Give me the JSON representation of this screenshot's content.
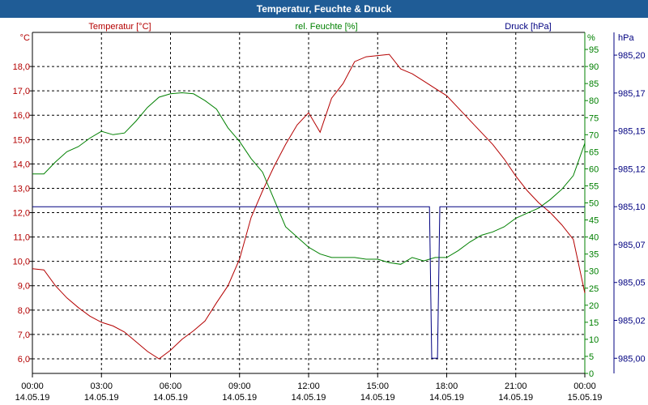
{
  "window": {
    "title": "Temperatur, Feuchte & Druck"
  },
  "chart_data": {
    "type": "line",
    "title": "Temperatur, Feuchte & Druck",
    "grid": true,
    "x_axis": {
      "labels": [
        {
          "time": "00:00",
          "date": "14.05.19"
        },
        {
          "time": "03:00",
          "date": "14.05.19"
        },
        {
          "time": "06:00",
          "date": "14.05.19"
        },
        {
          "time": "09:00",
          "date": "14.05.19"
        },
        {
          "time": "12:00",
          "date": "14.05.19"
        },
        {
          "time": "15:00",
          "date": "14.05.19"
        },
        {
          "time": "18:00",
          "date": "14.05.19"
        },
        {
          "time": "21:00",
          "date": "14.05.19"
        },
        {
          "time": "00:00",
          "date": "15.05.19"
        }
      ],
      "range_hours": [
        0,
        24
      ]
    },
    "axes": {
      "temperature": {
        "label": "Temperatur [°C]",
        "unit": "°C",
        "range": [
          5.4,
          19.4
        ],
        "ticks": [
          "6,0",
          "7,0",
          "8,0",
          "9,0",
          "10,0",
          "11,0",
          "12,0",
          "13,0",
          "14,0",
          "15,0",
          "16,0",
          "17,0",
          "18,0"
        ],
        "color": "#b40000"
      },
      "humidity": {
        "label": "rel. Feuchte [%]",
        "unit": "%",
        "range": [
          0,
          100
        ],
        "ticks": [
          "0",
          "5",
          "10",
          "15",
          "20",
          "25",
          "30",
          "35",
          "40",
          "45",
          "50",
          "55",
          "60",
          "65",
          "70",
          "75",
          "80",
          "85",
          "90",
          "95"
        ],
        "color": "#008000"
      },
      "pressure": {
        "label": "Druck [hPa]",
        "unit": "hPa",
        "range": [
          984.99,
          985.215
        ],
        "ticks": [
          "985,00",
          "985,02",
          "985,05",
          "985,07",
          "985,10",
          "985,12",
          "985,15",
          "985,17",
          "985,20"
        ],
        "color": "#000080"
      }
    },
    "series": [
      {
        "name": "Temperatur [°C]",
        "axis": "temperature",
        "color": "#b40000",
        "x": [
          0,
          0.5,
          1,
          1.5,
          2,
          2.5,
          3,
          3.5,
          4,
          4.5,
          5,
          5.5,
          6,
          6.5,
          7,
          7.5,
          8,
          8.5,
          9,
          9.5,
          10,
          10.5,
          11,
          11.5,
          12,
          12.5,
          13,
          13.5,
          14,
          14.5,
          15,
          15.5,
          16,
          16.5,
          17,
          17.5,
          18,
          18.5,
          19,
          19.5,
          20,
          20.5,
          21,
          21.5,
          22,
          22.5,
          23,
          23.5,
          24
        ],
        "values": [
          9.7,
          9.65,
          9.0,
          8.5,
          8.1,
          7.75,
          7.5,
          7.35,
          7.1,
          6.7,
          6.3,
          6.0,
          6.35,
          6.8,
          7.15,
          7.55,
          8.3,
          9.0,
          10.1,
          11.8,
          12.9,
          13.9,
          14.8,
          15.6,
          16.1,
          15.3,
          16.7,
          17.3,
          18.2,
          18.4,
          18.45,
          18.5,
          17.9,
          17.7,
          17.4,
          17.1,
          16.8,
          16.3,
          15.8,
          15.3,
          14.8,
          14.2,
          13.5,
          12.9,
          12.4,
          12.0,
          11.5,
          10.9,
          8.7
        ]
      },
      {
        "name": "rel. Feuchte [%]",
        "axis": "humidity",
        "color": "#008000",
        "x": [
          0,
          0.5,
          1,
          1.5,
          2,
          2.5,
          3,
          3.5,
          4,
          4.5,
          5,
          5.5,
          6,
          6.5,
          7,
          7.5,
          8,
          8.5,
          9,
          9.5,
          10,
          10.5,
          11,
          11.5,
          12,
          12.5,
          13,
          13.5,
          14,
          14.5,
          15,
          15.5,
          16,
          16.5,
          17,
          17.5,
          18,
          18.5,
          19,
          19.5,
          20,
          20.5,
          21,
          21.5,
          22,
          22.5,
          23,
          23.5,
          24
        ],
        "values": [
          58.5,
          58.5,
          62,
          65,
          66.5,
          69,
          71,
          70,
          70.5,
          74,
          78,
          81,
          82,
          82.3,
          82,
          80,
          77.5,
          72,
          68,
          63,
          59,
          51,
          43,
          40,
          37,
          35,
          34,
          34,
          34,
          33.5,
          33.5,
          32.5,
          32,
          34,
          33,
          34,
          34,
          36,
          38.5,
          40.5,
          41.5,
          43,
          45.5,
          47,
          48.5,
          51,
          54,
          58,
          67.5
        ]
      },
      {
        "name": "Druck [hPa]",
        "axis": "pressure",
        "color": "#000080",
        "x": [
          0,
          17.25,
          17.35,
          17.6,
          17.7,
          24
        ],
        "values": [
          985.1,
          985.1,
          985.0,
          985.0,
          985.1,
          985.1
        ]
      }
    ]
  }
}
